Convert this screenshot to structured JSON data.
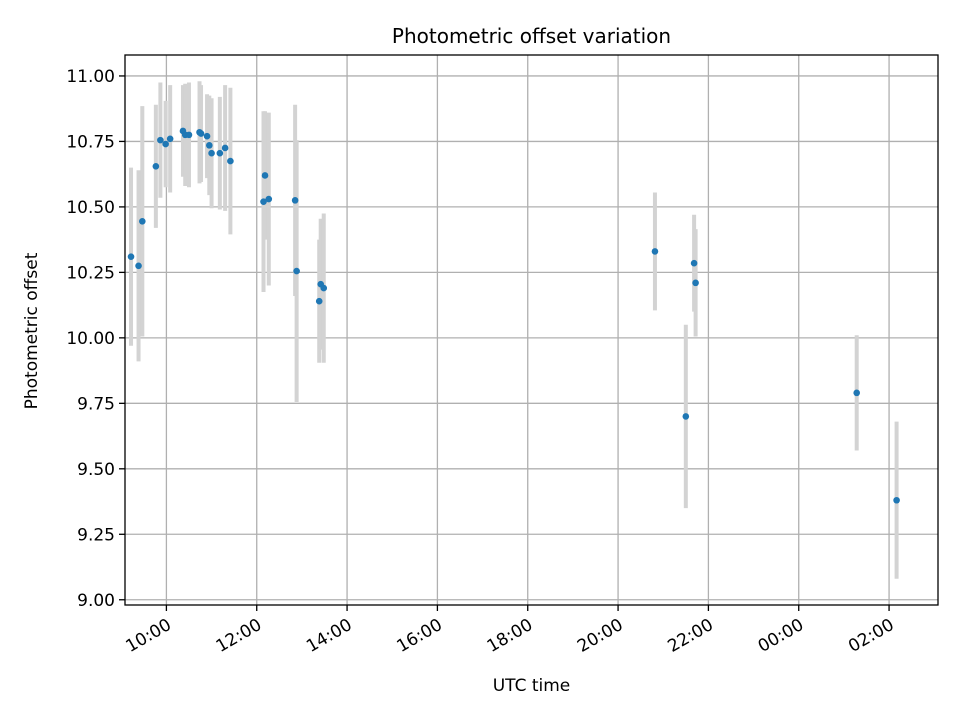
{
  "chart_data": {
    "type": "scatter",
    "title": "Photometric offset variation",
    "xlabel": "UTC time",
    "ylabel": "Photometric offset",
    "x_axis": {
      "kind": "time",
      "range": [
        "2024-01-01T09:05",
        "2024-01-02T03:05"
      ],
      "ticks": [
        "2024-01-01T10:00",
        "2024-01-01T12:00",
        "2024-01-01T14:00",
        "2024-01-01T16:00",
        "2024-01-01T18:00",
        "2024-01-01T20:00",
        "2024-01-01T22:00",
        "2024-01-02T00:00",
        "2024-01-02T02:00"
      ],
      "tick_labels": [
        "10:00",
        "12:00",
        "14:00",
        "16:00",
        "18:00",
        "20:00",
        "22:00",
        "00:00",
        "02:00"
      ]
    },
    "y_axis": {
      "range": [
        8.98,
        11.08
      ],
      "ticks": [
        9.0,
        9.25,
        9.5,
        9.75,
        10.0,
        10.25,
        10.5,
        10.75,
        11.0
      ],
      "tick_labels": [
        "9.00",
        "9.25",
        "9.50",
        "9.75",
        "10.00",
        "10.25",
        "10.50",
        "10.75",
        "11.00"
      ]
    },
    "grid": true,
    "colors": {
      "marker": "#1f77b4",
      "errorbar": "#d3d3d3"
    },
    "points": [
      {
        "t": "2024-01-01T09:13",
        "y": 10.31,
        "err": 0.34
      },
      {
        "t": "2024-01-01T09:23",
        "y": 10.275,
        "err": 0.365
      },
      {
        "t": "2024-01-01T09:28",
        "y": 10.445,
        "err": 0.44
      },
      {
        "t": "2024-01-01T09:46",
        "y": 10.655,
        "err": 0.235
      },
      {
        "t": "2024-01-01T09:52",
        "y": 10.755,
        "err": 0.22
      },
      {
        "t": "2024-01-01T09:59",
        "y": 10.74,
        "err": 0.165
      },
      {
        "t": "2024-01-01T10:05",
        "y": 10.76,
        "err": 0.205
      },
      {
        "t": "2024-01-01T10:22",
        "y": 10.79,
        "err": 0.175
      },
      {
        "t": "2024-01-01T10:25",
        "y": 10.775,
        "err": 0.195
      },
      {
        "t": "2024-01-01T10:30",
        "y": 10.775,
        "err": 0.2
      },
      {
        "t": "2024-01-01T10:44",
        "y": 10.785,
        "err": 0.195
      },
      {
        "t": "2024-01-01T10:46",
        "y": 10.78,
        "err": 0.185
      },
      {
        "t": "2024-01-01T10:54",
        "y": 10.77,
        "err": 0.16
      },
      {
        "t": "2024-01-01T10:57",
        "y": 10.735,
        "err": 0.19
      },
      {
        "t": "2024-01-01T11:00",
        "y": 10.705,
        "err": 0.21
      },
      {
        "t": "2024-01-01T11:11",
        "y": 10.705,
        "err": 0.215
      },
      {
        "t": "2024-01-01T11:18",
        "y": 10.725,
        "err": 0.24
      },
      {
        "t": "2024-01-01T11:25",
        "y": 10.675,
        "err": 0.28
      },
      {
        "t": "2024-01-01T12:09",
        "y": 10.52,
        "err": 0.345
      },
      {
        "t": "2024-01-01T12:11",
        "y": 10.62,
        "err": 0.245
      },
      {
        "t": "2024-01-01T12:16",
        "y": 10.53,
        "err": 0.33
      },
      {
        "t": "2024-01-01T12:51",
        "y": 10.525,
        "err": 0.365
      },
      {
        "t": "2024-01-01T12:53",
        "y": 10.255,
        "err": 0.5
      },
      {
        "t": "2024-01-01T13:23",
        "y": 10.14,
        "err": 0.235
      },
      {
        "t": "2024-01-01T13:25",
        "y": 10.205,
        "err": 0.25
      },
      {
        "t": "2024-01-01T13:29",
        "y": 10.19,
        "err": 0.285
      },
      {
        "t": "2024-01-01T20:49",
        "y": 10.33,
        "err": 0.225
      },
      {
        "t": "2024-01-01T21:30",
        "y": 9.7,
        "err": 0.35
      },
      {
        "t": "2024-01-01T21:41",
        "y": 10.285,
        "err": 0.185
      },
      {
        "t": "2024-01-01T21:43",
        "y": 10.21,
        "err": 0.205
      },
      {
        "t": "2024-01-02T01:17",
        "y": 9.79,
        "err": 0.22
      },
      {
        "t": "2024-01-02T02:10",
        "y": 9.38,
        "err": 0.3
      }
    ]
  }
}
